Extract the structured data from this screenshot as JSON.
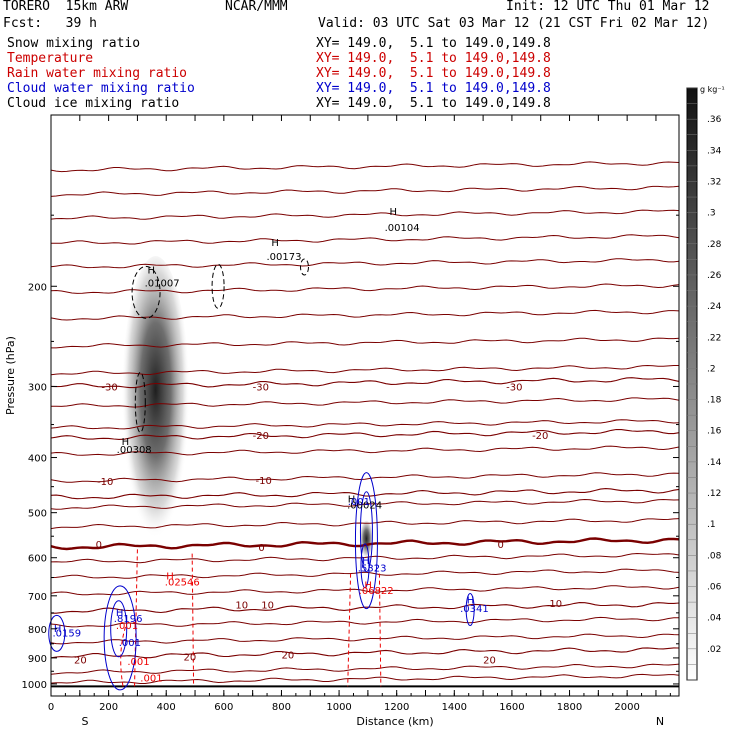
{
  "header": {
    "model": "TORERO  15km ARW",
    "org": "NCAR/MMM",
    "init": "Init: 12 UTC Thu 01 Mar 12",
    "fcst": "Fcst:   39 h",
    "valid": "Valid: 03 UTC Sat 03 Mar 12 (21 CST Fri 02 Mar 12)"
  },
  "fields": [
    {
      "label": "Snow mixing ratio",
      "xy": "XY= 149.0,  5.1 to 149.0,149.8",
      "color": "#000000"
    },
    {
      "label": "Temperature",
      "xy": "XY= 149.0,  5.1 to 149.0,149.8",
      "color": "#cc0000"
    },
    {
      "label": "Rain water mixing ratio",
      "xy": "XY= 149.0,  5.1 to 149.0,149.8",
      "color": "#cc0000"
    },
    {
      "label": "Cloud water mixing ratio",
      "xy": "XY= 149.0,  5.1 to 149.0,149.8",
      "color": "#0000cc"
    },
    {
      "label": "Cloud ice mixing ratio",
      "xy": "XY= 149.0,  5.1 to 149.0,149.8",
      "color": "#000000"
    }
  ],
  "colors": {
    "temperature": "#7a0000",
    "rain": "#ee0000",
    "cloud_water": "#0000cc",
    "ice": "#000000"
  },
  "chart_data": {
    "type": "heatmap",
    "xlabel": "Distance (km)",
    "ylabel": "Pressure (hPa)",
    "xlim": [
      0,
      2180
    ],
    "ylim": [
      1050,
      100
    ],
    "x_ticks": [
      0,
      100,
      200,
      300,
      400,
      500,
      600,
      700,
      800,
      900,
      1000,
      1100,
      1200,
      1300,
      1400,
      1500,
      1600,
      1700,
      1800,
      1900,
      2000,
      2100
    ],
    "x_tick_labels": [
      "0",
      "200",
      "400",
      "600",
      "800",
      "1000",
      "1200",
      "1400",
      "1600",
      "1800",
      "2000"
    ],
    "y_tick_labels": [
      "200",
      "300",
      "400",
      "500",
      "600",
      "700",
      "800",
      "900",
      "1000"
    ],
    "y_log_scale": true,
    "end_labels": {
      "left": "S",
      "right": "N"
    },
    "colorbar": {
      "unit": "g kg⁻¹",
      "min": 0,
      "max": 0.38,
      "step": 0.01,
      "labels": [
        ".02",
        ".04",
        ".06",
        ".08",
        ".1",
        ".12",
        ".14",
        ".16",
        ".18",
        ".2",
        ".22",
        ".24",
        ".26",
        ".28",
        ".3",
        ".32",
        ".34",
        ".36"
      ]
    },
    "snow_maximum": {
      "x": 370,
      "p_top": 170,
      "p_bottom": 585,
      "max": 0.36
    },
    "temperature_isotherms": [
      {
        "value": -30,
        "p": 300,
        "labels": [
          "-30"
        ]
      },
      {
        "value": -20,
        "p": 370,
        "labels": [
          "-20"
        ]
      },
      {
        "value": -10,
        "p": 470,
        "labels": [
          "-10"
        ]
      },
      {
        "value": 0,
        "p": 575,
        "labels": [
          "0"
        ]
      },
      {
        "value": 10,
        "p": 745,
        "labels": [
          "10"
        ]
      },
      {
        "value": 20,
        "p": 895,
        "labels": [
          "20"
        ]
      }
    ],
    "annotations": [
      {
        "text": "H",
        "x": 335,
        "p": 190,
        "color": "#000000"
      },
      {
        "text": ".01007",
        "x": 325,
        "p": 200,
        "color": "#000000"
      },
      {
        "text": "H",
        "x": 765,
        "p": 170,
        "color": "#000000"
      },
      {
        "text": ".00173",
        "x": 748,
        "p": 180,
        "color": "#000000"
      },
      {
        "text": "H",
        "x": 1175,
        "p": 150,
        "color": "#000000"
      },
      {
        "text": ".00104",
        "x": 1158,
        "p": 160,
        "color": "#000000"
      },
      {
        "text": "H",
        "x": 245,
        "p": 380,
        "color": "#000000"
      },
      {
        "text": ".00308",
        "x": 228,
        "p": 393,
        "color": "#000000"
      },
      {
        "text": "H",
        "x": 1030,
        "p": 480,
        "color": "#000000"
      },
      {
        "text": ".00024",
        "x": 1028,
        "p": 492,
        "color": "#000000"
      },
      {
        "text": ".001",
        "x": 1030,
        "p": 485,
        "color": "#0000cc"
      },
      {
        "text": "H",
        "x": 1080,
        "p": 615,
        "color": "#0000cc"
      },
      {
        "text": ".5323",
        "x": 1065,
        "p": 635,
        "color": "#0000cc"
      },
      {
        "text": "H",
        "x": 1088,
        "p": 680,
        "color": "#ee0000"
      },
      {
        "text": ".06822",
        "x": 1068,
        "p": 695,
        "color": "#ee0000"
      },
      {
        "text": "H",
        "x": 400,
        "p": 655,
        "color": "#ee0000"
      },
      {
        "text": ".02546",
        "x": 395,
        "p": 672,
        "color": "#ee0000"
      },
      {
        "text": "H",
        "x": 1443,
        "p": 722,
        "color": "#0000cc"
      },
      {
        "text": ".0341",
        "x": 1420,
        "p": 748,
        "color": "#0000cc"
      },
      {
        "text": "H",
        "x": 225,
        "p": 760,
        "color": "#0000cc"
      },
      {
        "text": ".8196",
        "x": 218,
        "p": 778,
        "color": "#0000cc"
      },
      {
        "text": ".001",
        "x": 225,
        "p": 800,
        "color": "#ee0000"
      },
      {
        "text": ".001",
        "x": 235,
        "p": 858,
        "color": "#0000cc"
      },
      {
        "text": ".001",
        "x": 265,
        "p": 927,
        "color": "#ee0000"
      },
      {
        "text": ".001",
        "x": 310,
        "p": 990,
        "color": "#ee0000"
      },
      {
        "text": "H",
        "x": 10,
        "p": 810,
        "color": "#0000cc"
      },
      {
        "text": ".0159",
        "x": 5,
        "p": 825,
        "color": "#0000cc"
      }
    ],
    "isotherm_labels": [
      {
        "text": "-30",
        "x": 175,
        "p": 300
      },
      {
        "text": "-30",
        "x": 700,
        "p": 300
      },
      {
        "text": "-30",
        "x": 1580,
        "p": 300
      },
      {
        "text": "-20",
        "x": 700,
        "p": 365
      },
      {
        "text": "-20",
        "x": 1670,
        "p": 365
      },
      {
        "text": "-10",
        "x": 160,
        "p": 440
      },
      {
        "text": "-10",
        "x": 710,
        "p": 438
      },
      {
        "text": "0",
        "x": 155,
        "p": 568
      },
      {
        "text": "0",
        "x": 720,
        "p": 575
      },
      {
        "text": "0",
        "x": 1550,
        "p": 568
      },
      {
        "text": "10",
        "x": 640,
        "p": 725
      },
      {
        "text": "10",
        "x": 730,
        "p": 725
      },
      {
        "text": "10",
        "x": 1730,
        "p": 720
      },
      {
        "text": "20",
        "x": 80,
        "p": 905
      },
      {
        "text": "20",
        "x": 460,
        "p": 895
      },
      {
        "text": "20",
        "x": 800,
        "p": 888
      },
      {
        "text": "20",
        "x": 1500,
        "p": 905
      }
    ]
  }
}
